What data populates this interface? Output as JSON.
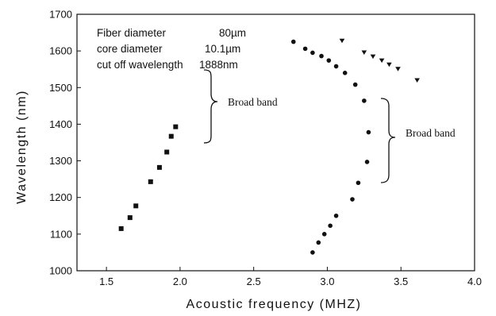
{
  "chart_data": {
    "type": "scatter",
    "xlabel": "Acoustic frequency (MHZ)",
    "ylabel": "Wavelength (nm)",
    "xlim": [
      1.3,
      4.0
    ],
    "ylim": [
      1000,
      1700
    ],
    "x_ticks": [
      1.5,
      2.0,
      2.5,
      3.0,
      3.5,
      4.0
    ],
    "y_ticks": [
      1000,
      1100,
      1200,
      1300,
      1400,
      1500,
      1600,
      1700
    ],
    "grid": false,
    "legend": "none",
    "annotations": [
      {
        "label": "Fiber diameter",
        "value": "80µm"
      },
      {
        "label": "core diameter",
        "value": "10.1µm"
      },
      {
        "label": "cut off wavelength",
        "value": "1888nm"
      }
    ],
    "brace_label_1": "Broad band",
    "brace_label_2": "Broad band",
    "series": [
      {
        "marker": "square",
        "points": [
          [
            1.6,
            1115
          ],
          [
            1.66,
            1145
          ],
          [
            1.7,
            1177
          ],
          [
            1.8,
            1243
          ],
          [
            1.86,
            1282
          ],
          [
            1.91,
            1324
          ],
          [
            1.94,
            1367
          ],
          [
            1.97,
            1393
          ]
        ]
      },
      {
        "marker": "circle",
        "points": [
          [
            2.9,
            1050
          ],
          [
            2.94,
            1077
          ],
          [
            2.98,
            1100
          ],
          [
            3.02,
            1123
          ],
          [
            3.06,
            1150
          ],
          [
            3.17,
            1195
          ],
          [
            3.21,
            1240
          ],
          [
            3.27,
            1297
          ],
          [
            3.28,
            1378
          ],
          [
            3.25,
            1464
          ],
          [
            3.19,
            1508
          ],
          [
            3.12,
            1540
          ],
          [
            3.06,
            1558
          ],
          [
            3.01,
            1574
          ],
          [
            2.96,
            1586
          ],
          [
            2.9,
            1595
          ],
          [
            2.85,
            1606
          ],
          [
            2.77,
            1625
          ]
        ]
      },
      {
        "marker": "triangle-down",
        "points": [
          [
            3.1,
            1628
          ],
          [
            3.25,
            1596
          ],
          [
            3.31,
            1585
          ],
          [
            3.37,
            1574
          ],
          [
            3.42,
            1563
          ],
          [
            3.48,
            1551
          ],
          [
            3.61,
            1520
          ]
        ]
      }
    ]
  }
}
